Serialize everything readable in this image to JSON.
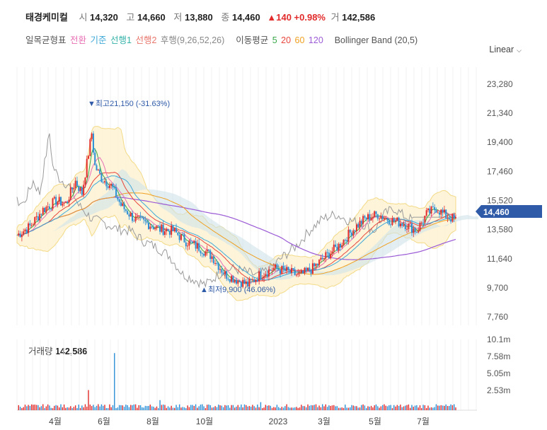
{
  "header": {
    "name": "태경케미컬",
    "open_label": "시",
    "open": "14,320",
    "high_label": "고",
    "high": "14,660",
    "low_label": "저",
    "low": "13,880",
    "close_label": "종",
    "close": "14,460",
    "change": "▲140 +0.98%",
    "volume_label": "거",
    "volume": "142,586"
  },
  "legend": {
    "ichimoku_label": "일목균형표",
    "conversion": "전환",
    "base": "기준",
    "span1": "선행1",
    "span2": "선행2",
    "lagging": "후행(9,26,52,26)",
    "ma_label": "이동평균",
    "ma5": "5",
    "ma20": "20",
    "ma60": "60",
    "ma120": "120",
    "bollinger": "Bollinger Band (20,5)"
  },
  "scale_selector": "Linear",
  "colors": {
    "up": "#e22b2b",
    "down": "#2a8fd6",
    "conversion": "#e86fb4",
    "base": "#3fa8d8",
    "span1": "#34b2a8",
    "span2": "#e8766c",
    "lagging": "#9a9a9a",
    "ma5": "#3aa84a",
    "ma20": "#e8463c",
    "ma60": "#f0a020",
    "ma120": "#9b5bd6",
    "bollinger": "#f3d77a",
    "price_tag": "#2f5aa8"
  },
  "annotations": {
    "high_marker": "▼최고21,150 (-31.63%)",
    "low_marker": "▲최저9,900 (46.06%)",
    "current_price": "14,460"
  },
  "volume_panel": {
    "title": "거래량",
    "value": "142,586",
    "ticks": [
      "10.1m",
      "7.58m",
      "5.05m",
      "2.53m"
    ]
  },
  "chart_data": {
    "type": "candlestick",
    "x_tick_labels": [
      "4월",
      "6월",
      "8월",
      "10월",
      "2023",
      "3월",
      "5월",
      "7월"
    ],
    "y_tick_labels": [
      "23,280",
      "21,340",
      "19,400",
      "17,460",
      "15,520",
      "13,580",
      "11,640",
      "9,700",
      "7,760"
    ],
    "ylim": [
      7200,
      24400
    ],
    "price_path": [
      [
        0,
        13200
      ],
      [
        8,
        13800
      ],
      [
        16,
        14900
      ],
      [
        24,
        15500
      ],
      [
        30,
        15300
      ],
      [
        36,
        16800
      ],
      [
        40,
        16000
      ],
      [
        46,
        20000
      ],
      [
        48,
        17800
      ],
      [
        52,
        17000
      ],
      [
        58,
        16500
      ],
      [
        64,
        15200
      ],
      [
        72,
        14300
      ],
      [
        80,
        14000
      ],
      [
        88,
        13600
      ],
      [
        96,
        13500
      ],
      [
        104,
        12800
      ],
      [
        112,
        12400
      ],
      [
        120,
        11800
      ],
      [
        128,
        10600
      ],
      [
        136,
        10200
      ],
      [
        142,
        9900
      ],
      [
        150,
        10600
      ],
      [
        158,
        11000
      ],
      [
        166,
        10800
      ],
      [
        174,
        10500
      ],
      [
        182,
        11000
      ],
      [
        190,
        11800
      ],
      [
        198,
        12500
      ],
      [
        206,
        13500
      ],
      [
        214,
        14300
      ],
      [
        222,
        14600
      ],
      [
        230,
        14200
      ],
      [
        238,
        14000
      ],
      [
        246,
        13500
      ],
      [
        252,
        14600
      ],
      [
        258,
        15000
      ],
      [
        264,
        14500
      ],
      [
        270,
        14200
      ]
    ],
    "volume_spikes": [
      [
        44,
        0.3
      ],
      [
        60,
        0.85
      ],
      [
        88,
        0.15
      ],
      [
        150,
        0.12
      ],
      [
        250,
        0.08
      ]
    ]
  }
}
